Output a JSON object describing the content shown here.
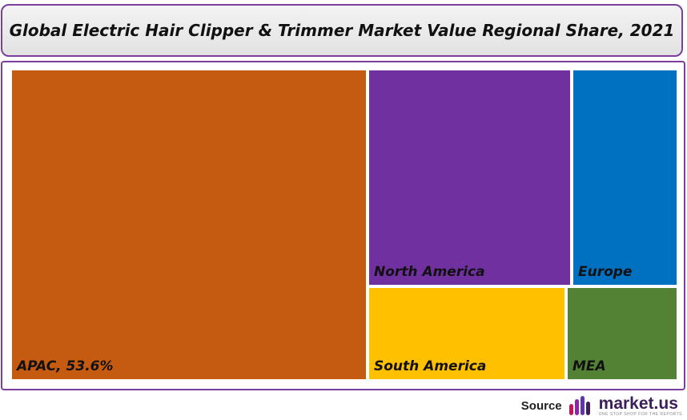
{
  "chart_data": {
    "type": "treemap",
    "title": "Global Electric Hair Clipper & Trimmer Market Value Regional Share, 2021",
    "cells": [
      {
        "name": "APAC",
        "label": "APAC, 53.6%",
        "value": 53.6,
        "color": "#c55a11"
      },
      {
        "name": "North America",
        "label": "North America",
        "value": 20.5,
        "color": "#7030a0"
      },
      {
        "name": "Europe",
        "label": "Europe",
        "value": 9.6,
        "color": "#0070c0"
      },
      {
        "name": "South America",
        "label": "South America",
        "value": 10.8,
        "color": "#ffc000"
      },
      {
        "name": "MEA",
        "label": "MEA",
        "value": 5.5,
        "color": "#548235"
      }
    ]
  },
  "footer": {
    "source_label": "Source",
    "logo_name": "market.us",
    "logo_tagline": "ONE STOP SHOP FOR THE REPORTS",
    "logo_icon": "market-us-logo-icon"
  },
  "colors": {
    "frame_border": "#7b3f9e",
    "logo_text": "#3c1f5a"
  }
}
